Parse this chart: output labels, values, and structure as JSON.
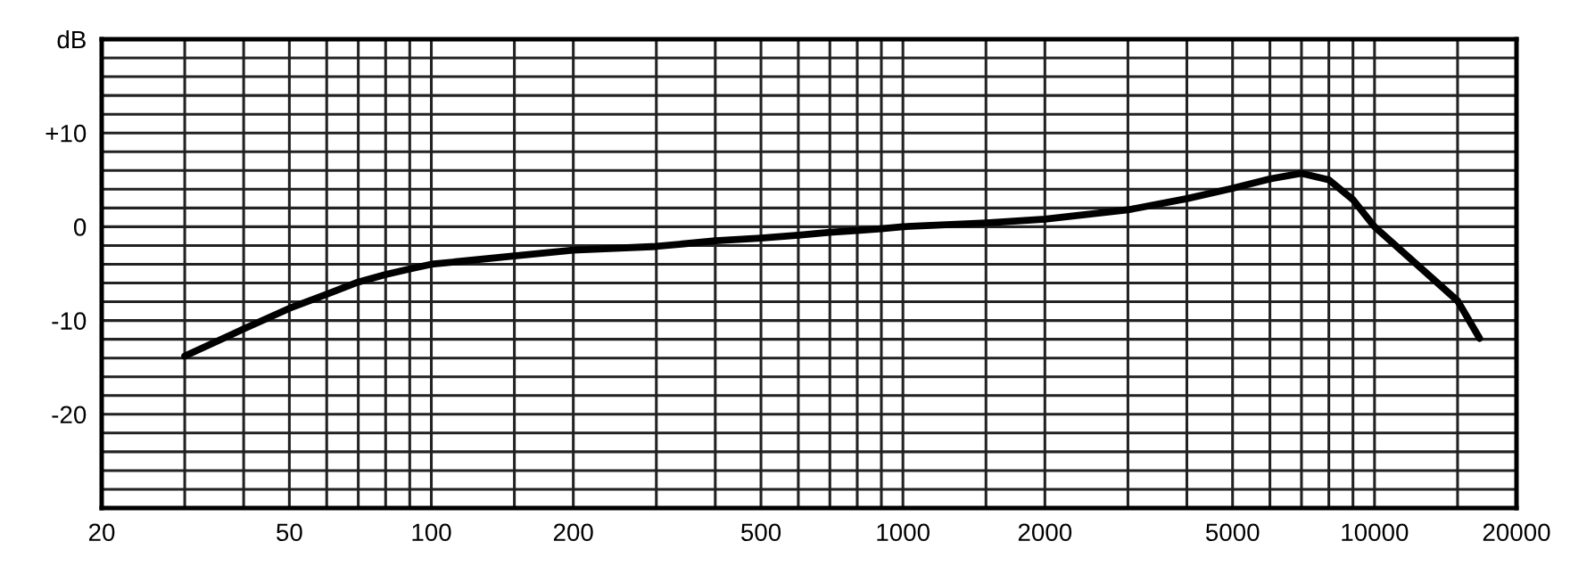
{
  "chart_data": {
    "type": "line",
    "log": "x",
    "grid": true,
    "marker": "none",
    "line_style": "solid",
    "xlim": [
      20,
      20000
    ],
    "ylim": [
      -30,
      20
    ],
    "xticks": [
      20,
      {
        "value": 30,
        "label": null
      },
      {
        "value": 40,
        "label": null
      },
      50,
      {
        "value": 60,
        "label": null
      },
      {
        "value": 70,
        "label": null
      },
      {
        "value": 80,
        "label": null
      },
      {
        "value": 90,
        "label": null
      },
      100,
      {
        "value": 150,
        "label": null
      },
      200,
      {
        "value": 300,
        "label": null
      },
      {
        "value": 400,
        "label": null
      },
      500,
      {
        "value": 600,
        "label": null
      },
      {
        "value": 700,
        "label": null
      },
      {
        "value": 800,
        "label": null
      },
      {
        "value": 900,
        "label": null
      },
      1000,
      {
        "value": 1500,
        "label": null
      },
      2000,
      {
        "value": 3000,
        "label": null
      },
      {
        "value": 4000,
        "label": null
      },
      5000,
      {
        "value": 6000,
        "label": null
      },
      {
        "value": 7000,
        "label": null
      },
      {
        "value": 8000,
        "label": null
      },
      {
        "value": 9000,
        "label": null
      },
      10000,
      {
        "value": 15000,
        "label": null
      },
      20000
    ],
    "yticks": [
      {
        "value": -30,
        "label": null
      },
      {
        "value": -28,
        "label": null
      },
      {
        "value": -26,
        "label": null
      },
      {
        "value": -24,
        "label": null
      },
      {
        "value": -22,
        "label": null
      },
      -20,
      {
        "value": -18,
        "label": null
      },
      {
        "value": -16,
        "label": null
      },
      {
        "value": -14,
        "label": null
      },
      {
        "value": -12,
        "label": null
      },
      -10,
      {
        "value": -8,
        "label": null
      },
      {
        "value": -6,
        "label": null
      },
      {
        "value": -4,
        "label": null
      },
      {
        "value": -2,
        "label": null
      },
      0,
      {
        "value": 2,
        "label": null
      },
      {
        "value": 4,
        "label": null
      },
      {
        "value": 6,
        "label": null
      },
      {
        "value": 8,
        "label": null
      },
      {
        "value": 10,
        "label": "+10"
      },
      {
        "value": 12,
        "label": null
      },
      {
        "value": 14,
        "label": null
      },
      {
        "value": 16,
        "label": null
      },
      {
        "value": 18,
        "label": null
      },
      {
        "value": 20,
        "label": "dB"
      }
    ],
    "x": [
      30,
      40,
      50,
      60,
      70,
      80,
      90,
      100,
      150,
      200,
      300,
      400,
      500,
      600,
      700,
      800,
      900,
      1000,
      1500,
      2000,
      3000,
      4000,
      5000,
      6000,
      7000,
      8000,
      9000,
      10000,
      15000,
      16700
    ],
    "series": [
      {
        "color": "#000000",
        "values": [
          -13.8,
          -10.9,
          -8.7,
          -7.2,
          -5.9,
          -5.1,
          -4.5,
          -4.0,
          -3.1,
          -2.5,
          -2.1,
          -1.5,
          -1.2,
          -0.9,
          -0.6,
          -0.4,
          -0.2,
          0,
          0.4,
          0.8,
          1.8,
          3.0,
          4.1,
          5.1,
          5.7,
          5.0,
          2.9,
          0,
          -7.9,
          -11.9
        ]
      }
    ]
  }
}
